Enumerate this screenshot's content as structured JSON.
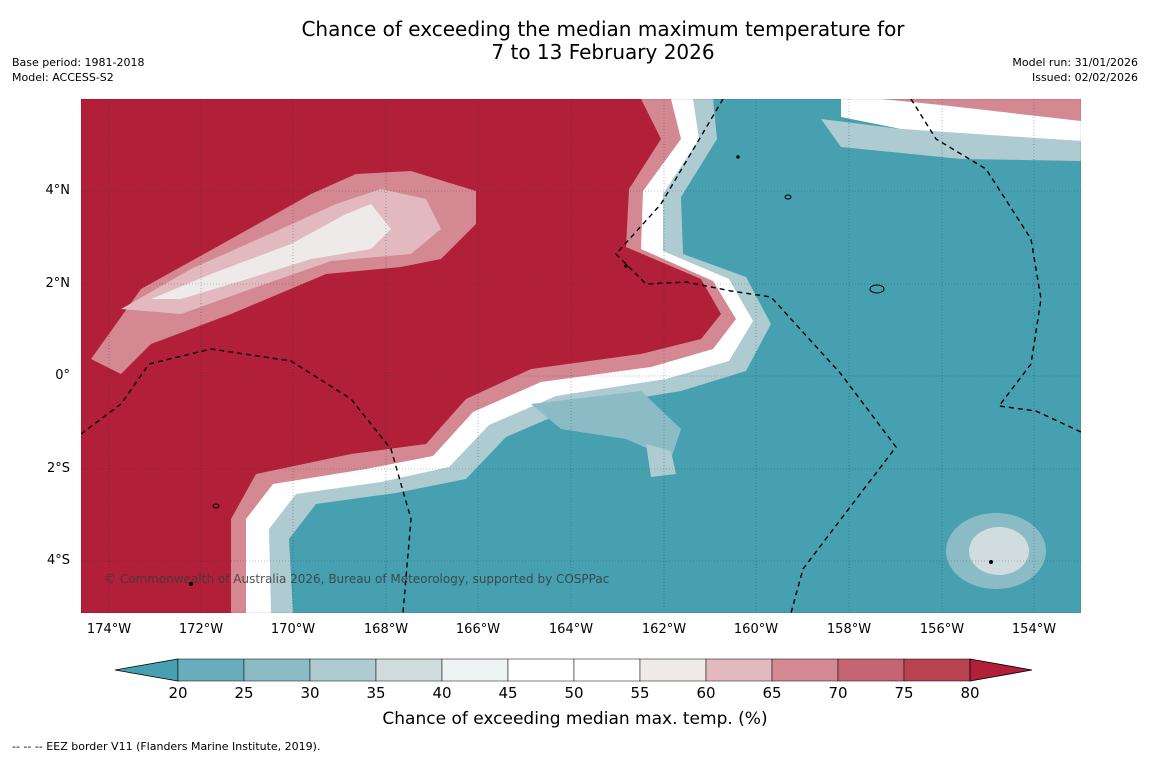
{
  "title": "Chance of exceeding the median maximum temperature for\n7 to 13 February 2026",
  "meta_left": {
    "base_period": "Base period: 1981-2018",
    "model": "Model: ACCESS-S2"
  },
  "meta_right": {
    "model_run": "Model run: 31/01/2026",
    "issued": "Issued: 02/02/2026"
  },
  "map": {
    "lat_labels": [
      "4°N",
      "2°N",
      "0°",
      "2°S",
      "4°S"
    ],
    "lon_labels": [
      "174°W",
      "172°W",
      "170°W",
      "168°W",
      "166°W",
      "164°W",
      "162°W",
      "160°W",
      "158°W",
      "156°W",
      "154°W"
    ],
    "copyright": "© Commonwealth of Australia 2026, Bureau of Meteorology, supported by COSPPac",
    "colors": {
      "high": "#b11f38",
      "low": "#46a0b0"
    }
  },
  "colorbar": {
    "ticks": [
      "20",
      "25",
      "30",
      "35",
      "40",
      "45",
      "50",
      "55",
      "60",
      "65",
      "70",
      "75",
      "80"
    ],
    "colors": [
      "#46a0b0",
      "#68adbc",
      "#8bbcc6",
      "#adcbd0",
      "#d0dcdd",
      "#eef3f4",
      "#ffffff",
      "#ffffff",
      "#eeeaea",
      "#e2b9bf",
      "#d48891",
      "#c66572",
      "#b94250",
      "#b11f38"
    ],
    "label": "Chance of exceeding median max. temp. (%)"
  },
  "footnote": "--  --  -- EEZ border V11 (Flanders Marine Institute, 2019)."
}
